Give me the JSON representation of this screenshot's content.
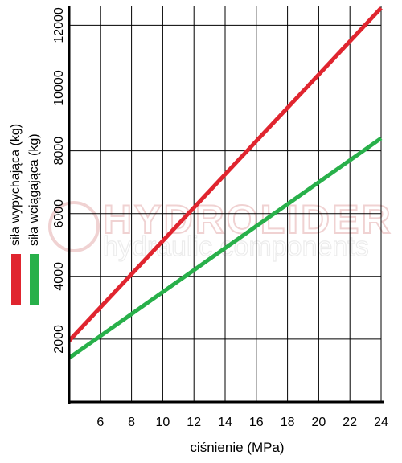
{
  "chart_data": {
    "type": "line",
    "xlabel": "ciśnienie (MPa)",
    "ylabel": "",
    "xlim": [
      4,
      24
    ],
    "ylim": [
      0,
      12600
    ],
    "x_ticks": [
      6,
      8,
      10,
      12,
      14,
      16,
      18,
      20,
      22,
      24
    ],
    "y_ticks": [
      2000,
      4000,
      6000,
      8000,
      10000,
      12000
    ],
    "x_tick_labels": [
      "6",
      "8",
      "10",
      "12",
      "14",
      "16",
      "18",
      "20",
      "22",
      "24"
    ],
    "y_tick_labels": [
      "2000",
      "4000",
      "6000",
      "8000",
      "10000",
      "12000"
    ],
    "grid": true,
    "legend_position": "left-vertical",
    "series": [
      {
        "name": "siła wypychająca (kg)",
        "color": "#e0252f",
        "x": [
          4,
          24
        ],
        "y": [
          1950,
          12550
        ]
      },
      {
        "name": "siła wciągająca (kg)",
        "color": "#28b04a",
        "x": [
          4,
          24
        ],
        "y": [
          1400,
          8400
        ]
      }
    ],
    "watermark": {
      "line1": "HYDROLIDER",
      "line2": "hydraulic components"
    }
  }
}
